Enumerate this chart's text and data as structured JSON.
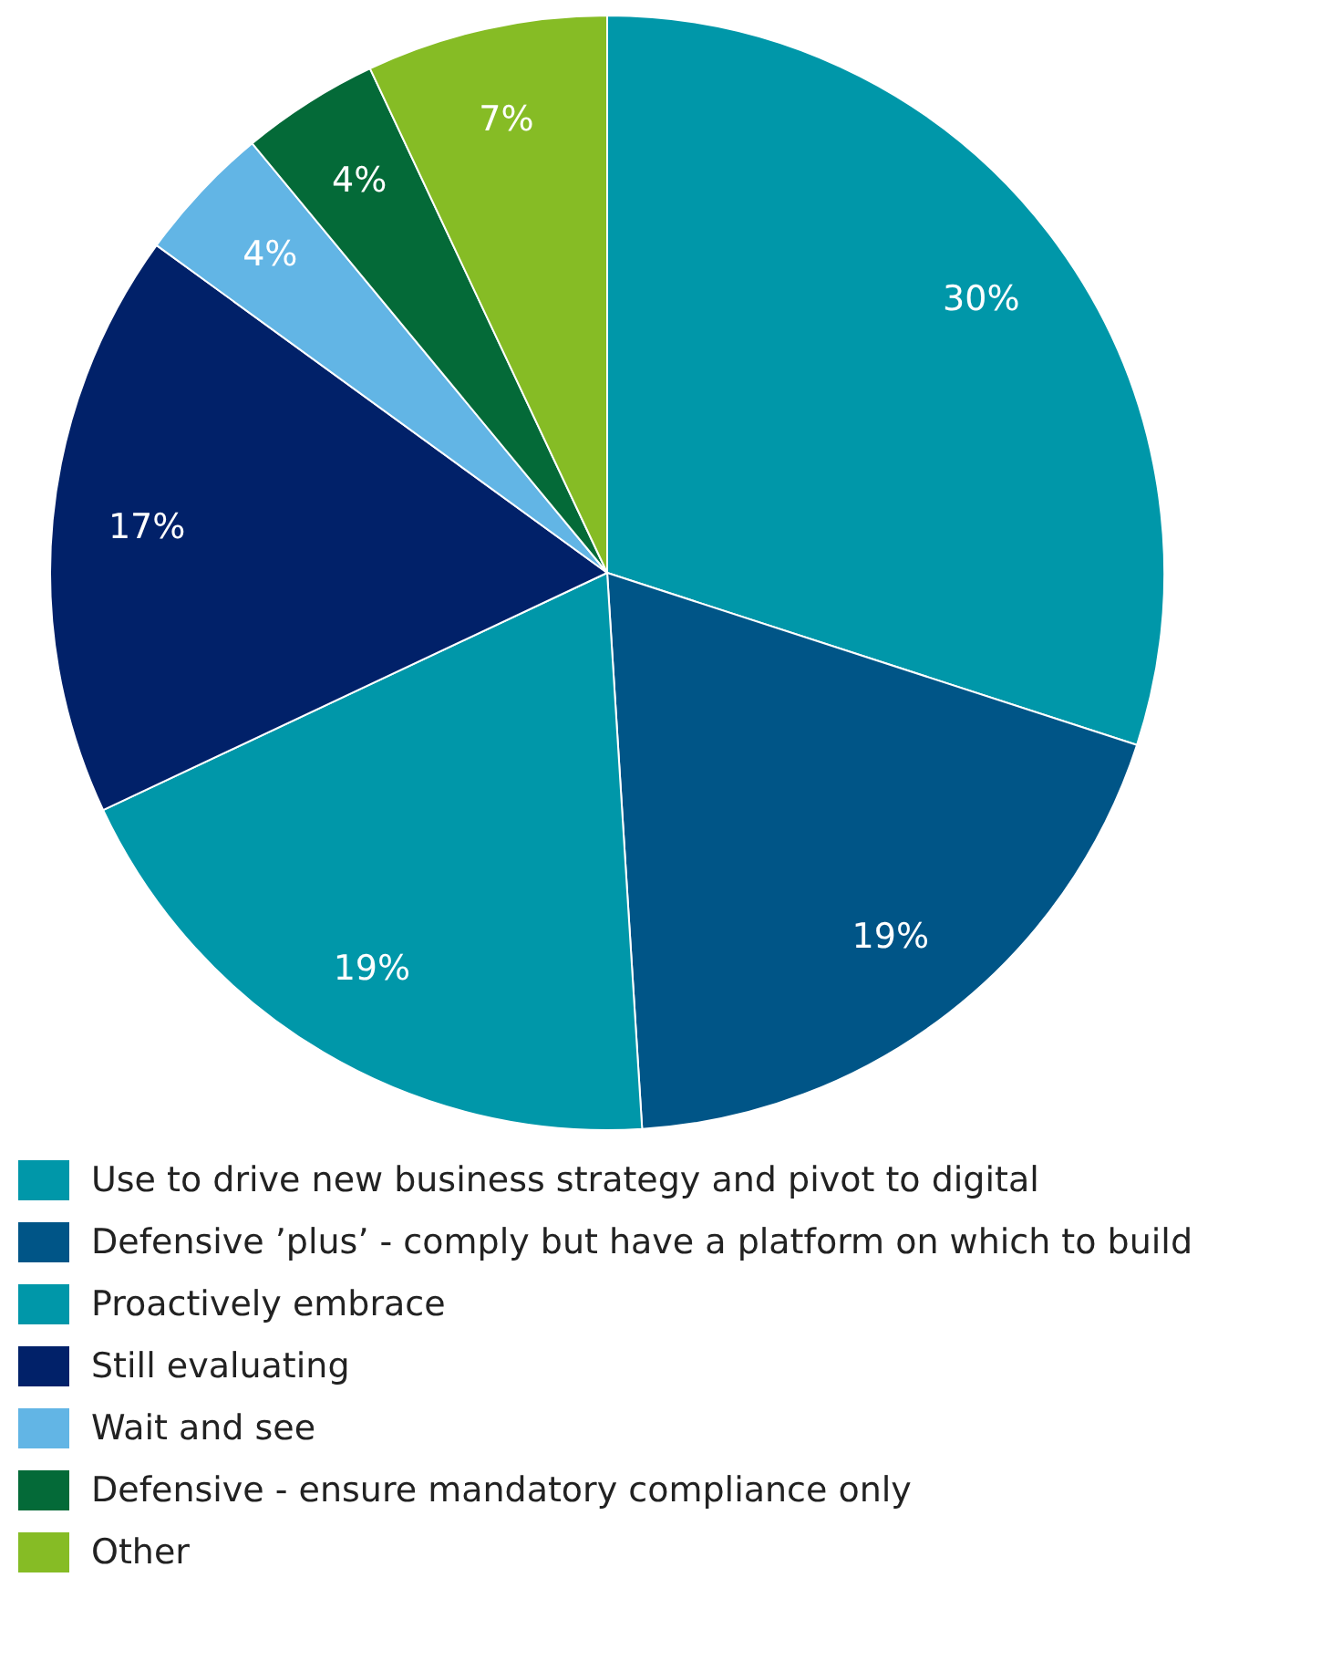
{
  "chart_data": {
    "type": "pie",
    "categories": [
      "Use to drive new business strategy and pivot to digital",
      "Defensive ’plus’ - comply but have a platform on which to build",
      "Proactively embrace",
      "Still evaluating",
      "Wait and see",
      "Defensive - ensure mandatory compliance only",
      "Other"
    ],
    "values": [
      30,
      19,
      19,
      17,
      4,
      4,
      7
    ],
    "colors": [
      "#0097a9",
      "#005587",
      "#0097a9",
      "#012169",
      "#62b5e5",
      "#046a38",
      "#86bc25"
    ],
    "value_labels": [
      "30%",
      "19%",
      "19%",
      "17%",
      "4%",
      "4%",
      "7%"
    ],
    "legend": "bottom"
  }
}
